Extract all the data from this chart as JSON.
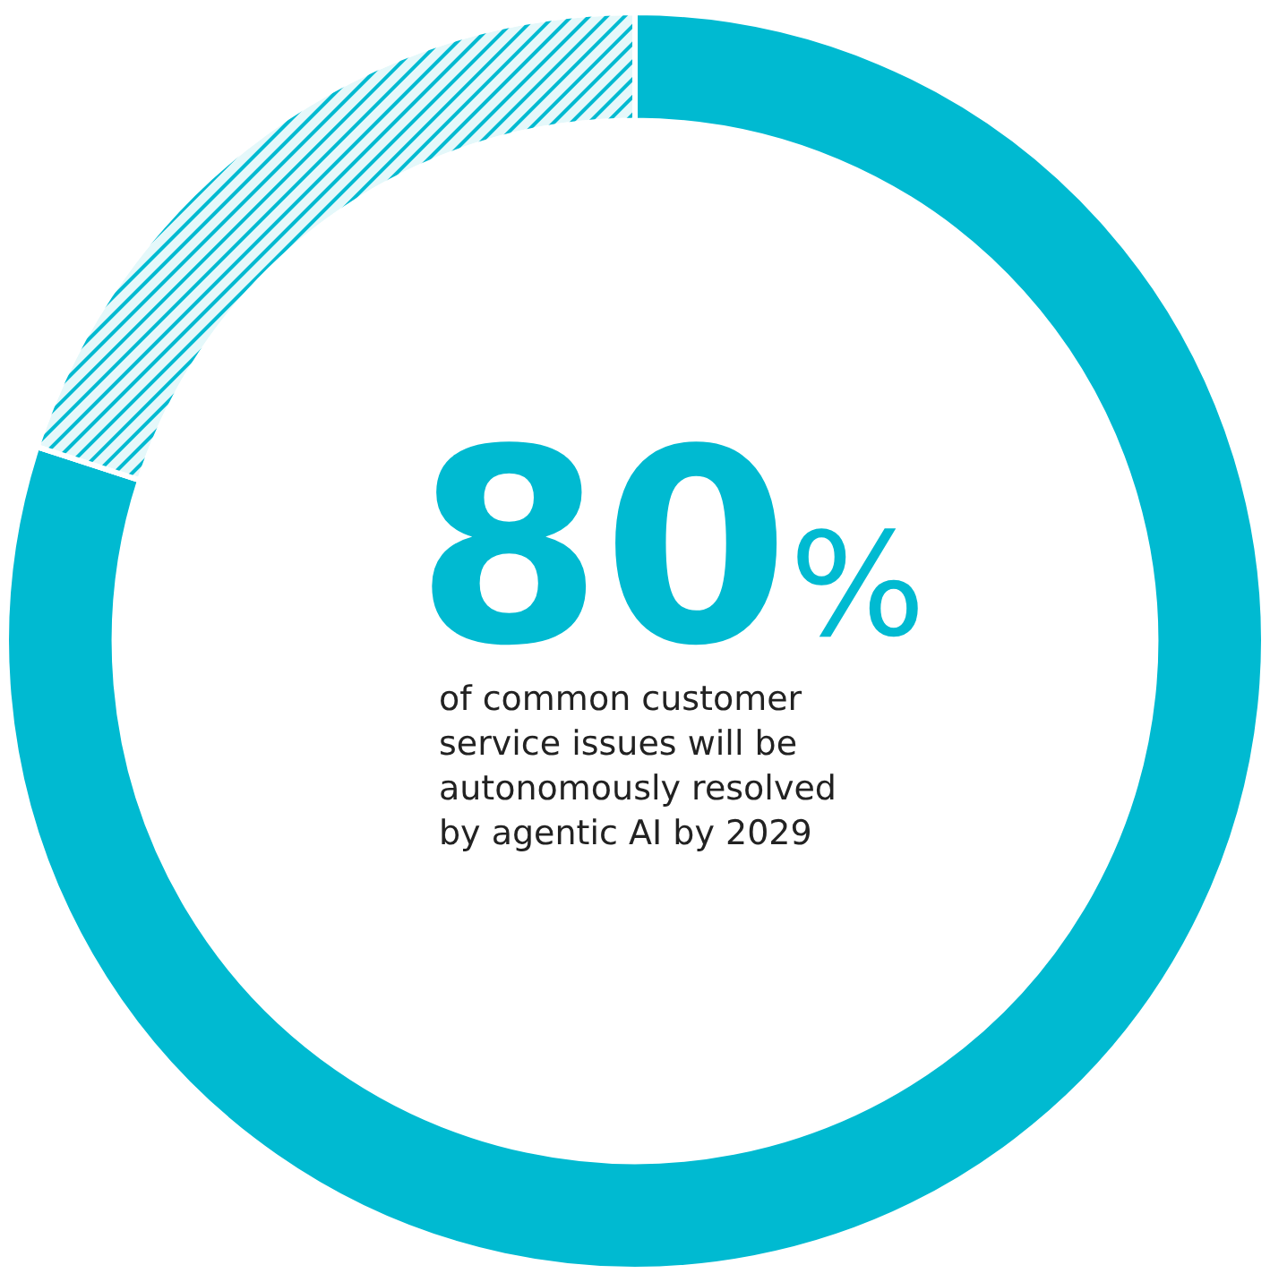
{
  "chart_data": {
    "type": "donut",
    "categories": [
      null,
      null
    ],
    "values": [
      80,
      20
    ],
    "colors": [
      "#00bad1",
      "#00bad1"
    ],
    "value_labels": [
      "80%",
      null
    ],
    "annotations": [
      "of common customer service issues will be autonomously resolved by agentic AI by 2029"
    ]
  }
}
